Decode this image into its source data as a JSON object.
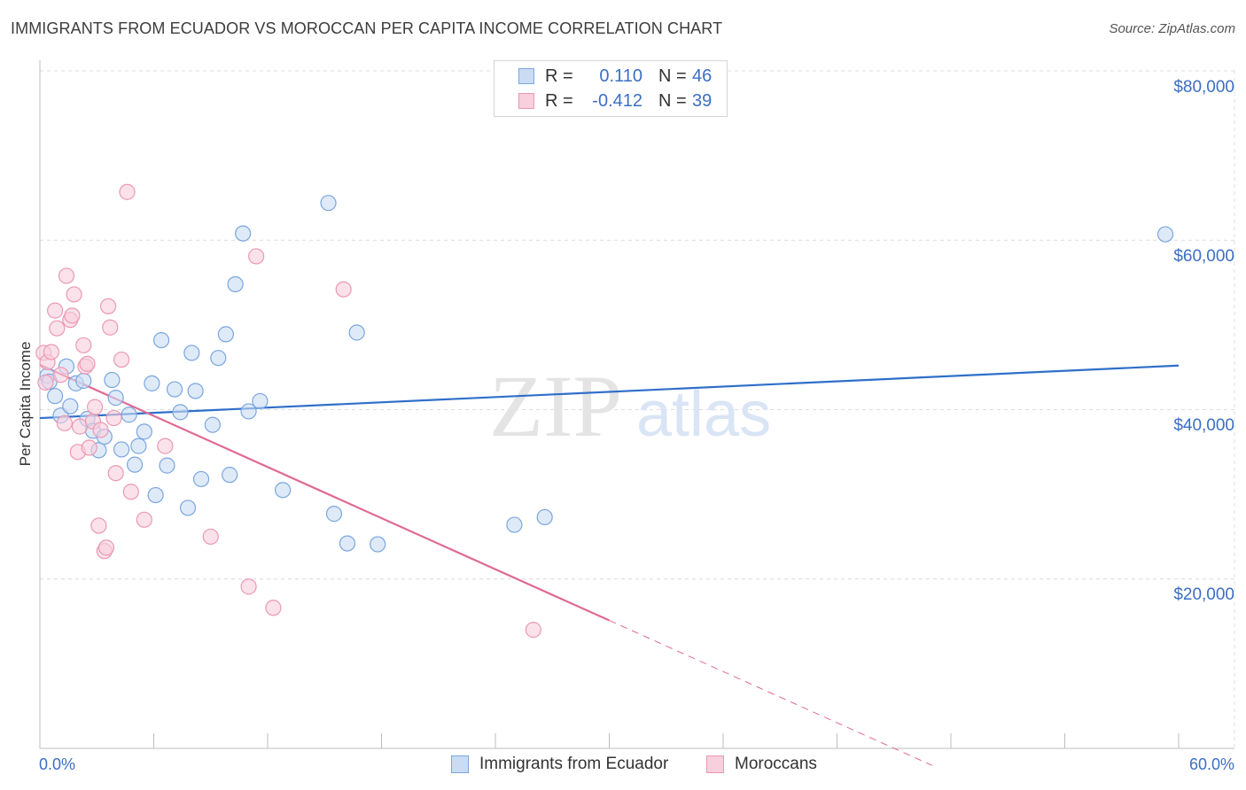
{
  "title": "IMMIGRANTS FROM ECUADOR VS MOROCCAN PER CAPITA INCOME CORRELATION CHART",
  "source": "Source: ZipAtlas.com",
  "watermark": {
    "zip": "ZIP",
    "atlas": "atlas"
  },
  "stats": [
    {
      "r_label": "R =",
      "r_value": "0.110",
      "n_label": "N =",
      "n_value": "46",
      "color": "#b7d0f0",
      "border": "#7aa6e0"
    },
    {
      "r_label": "R =",
      "r_value": "-0.412",
      "n_label": "N =",
      "n_value": "39",
      "color": "#f8c6d6",
      "border": "#ec98b3"
    }
  ],
  "legend": [
    {
      "label": "Immigrants from Ecuador",
      "color": "#b7d0f0",
      "border": "#7aa6e0"
    },
    {
      "label": "Moroccans",
      "color": "#f8c6d6",
      "border": "#ec98b3"
    }
  ],
  "chart_data": {
    "type": "scatter",
    "title": "IMMIGRANTS FROM ECUADOR VS MOROCCAN PER CAPITA INCOME CORRELATION CHART",
    "xlabel": "",
    "ylabel": "Per Capita Income",
    "xlim": [
      0,
      60
    ],
    "ylim": [
      0,
      82000
    ],
    "x_tick_labels": [
      "0.0%",
      "60.0%"
    ],
    "y_ticks": [
      {
        "value": 20000,
        "label": "$20,000"
      },
      {
        "value": 40000,
        "label": "$40,000"
      },
      {
        "value": 60000,
        "label": "$60,000"
      },
      {
        "value": 80000,
        "label": "$80,000"
      }
    ],
    "grid": true,
    "series": [
      {
        "name": "Immigrants from Ecuador",
        "color": "#7aa6e0",
        "fill": "#c9dcf4",
        "line_color": "#2f6fca",
        "trend": {
          "x0": 0,
          "y0": 39000,
          "x1": 60,
          "y1": 45200,
          "dash_from": null
        },
        "points": [
          [
            0.4,
            44000
          ],
          [
            0.5,
            43300
          ],
          [
            0.8,
            41600
          ],
          [
            1.1,
            39300
          ],
          [
            1.4,
            45100
          ],
          [
            1.6,
            40400
          ],
          [
            1.9,
            43100
          ],
          [
            2.3,
            43400
          ],
          [
            2.5,
            38900
          ],
          [
            2.8,
            37500
          ],
          [
            3.1,
            35200
          ],
          [
            3.4,
            36800
          ],
          [
            3.8,
            43500
          ],
          [
            4.0,
            41400
          ],
          [
            4.3,
            35300
          ],
          [
            4.7,
            39400
          ],
          [
            5.0,
            33500
          ],
          [
            5.2,
            35700
          ],
          [
            5.5,
            37400
          ],
          [
            5.9,
            43100
          ],
          [
            6.1,
            29900
          ],
          [
            6.4,
            48200
          ],
          [
            6.7,
            33400
          ],
          [
            7.1,
            42400
          ],
          [
            7.4,
            39700
          ],
          [
            7.8,
            28400
          ],
          [
            8.0,
            46700
          ],
          [
            8.2,
            42200
          ],
          [
            8.5,
            31800
          ],
          [
            9.1,
            38200
          ],
          [
            9.4,
            46100
          ],
          [
            9.8,
            48900
          ],
          [
            10.0,
            32300
          ],
          [
            10.3,
            54800
          ],
          [
            10.7,
            60800
          ],
          [
            11.0,
            39800
          ],
          [
            11.6,
            41000
          ],
          [
            12.8,
            30500
          ],
          [
            15.2,
            64400
          ],
          [
            15.5,
            27700
          ],
          [
            16.2,
            24200
          ],
          [
            16.7,
            49100
          ],
          [
            17.8,
            24100
          ],
          [
            25.0,
            26400
          ],
          [
            26.6,
            27300
          ],
          [
            59.3,
            60700
          ]
        ]
      },
      {
        "name": "Moroccans",
        "color": "#ec98b3",
        "fill": "#f8cfdc",
        "line_color": "#e06a94",
        "trend": {
          "x0": 0,
          "y0": 45300,
          "x1": 47,
          "y1": -2000,
          "dash_from": 30
        },
        "points": [
          [
            0.2,
            46700
          ],
          [
            0.3,
            43200
          ],
          [
            0.4,
            45600
          ],
          [
            0.6,
            46800
          ],
          [
            0.8,
            51700
          ],
          [
            0.9,
            49600
          ],
          [
            1.1,
            44100
          ],
          [
            1.3,
            38400
          ],
          [
            1.4,
            55800
          ],
          [
            1.6,
            50600
          ],
          [
            1.7,
            51100
          ],
          [
            1.8,
            53600
          ],
          [
            2.0,
            35000
          ],
          [
            2.1,
            38000
          ],
          [
            2.3,
            47600
          ],
          [
            2.4,
            45100
          ],
          [
            2.5,
            45400
          ],
          [
            2.6,
            35500
          ],
          [
            2.8,
            38600
          ],
          [
            2.9,
            40300
          ],
          [
            3.1,
            26300
          ],
          [
            3.2,
            37600
          ],
          [
            3.4,
            23300
          ],
          [
            3.5,
            23700
          ],
          [
            3.6,
            52200
          ],
          [
            3.7,
            49700
          ],
          [
            3.9,
            39000
          ],
          [
            4.0,
            32500
          ],
          [
            4.3,
            45900
          ],
          [
            4.6,
            65700
          ],
          [
            4.8,
            30300
          ],
          [
            5.5,
            27000
          ],
          [
            6.6,
            35700
          ],
          [
            9.0,
            25000
          ],
          [
            11.0,
            19100
          ],
          [
            11.4,
            58100
          ],
          [
            12.3,
            16600
          ],
          [
            16.0,
            54200
          ],
          [
            26.0,
            14000
          ]
        ]
      }
    ]
  }
}
